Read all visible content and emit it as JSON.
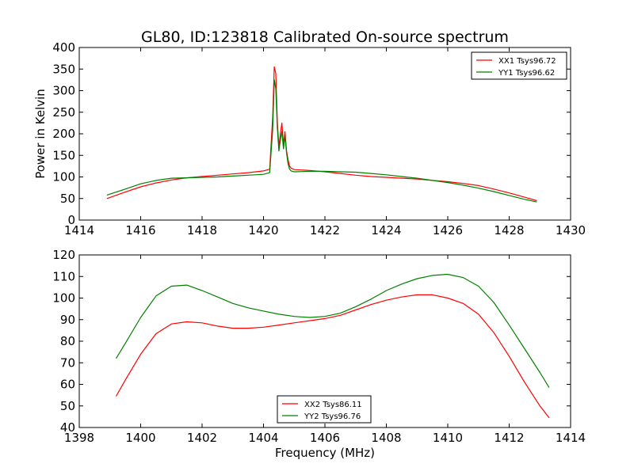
{
  "figure": {
    "title": "GL80, ID:123818 Calibrated On-source spectrum"
  },
  "chart_data": [
    {
      "type": "line",
      "title": "GL80, ID:123818 Calibrated On-source spectrum",
      "xlabel": "",
      "ylabel": "Power in Kelvin",
      "xlim": [
        1414,
        1430
      ],
      "ylim": [
        0,
        400
      ],
      "xticks": [
        1414,
        1416,
        1418,
        1420,
        1422,
        1424,
        1426,
        1428,
        1430
      ],
      "yticks": [
        0,
        50,
        100,
        150,
        200,
        250,
        300,
        350,
        400
      ],
      "grid": false,
      "legend_position": "top-right",
      "series": [
        {
          "name": "XX1 Tsys96.72",
          "color": "#ff0000",
          "x": [
            1414.9,
            1415.5,
            1416.0,
            1416.5,
            1417.0,
            1417.5,
            1418.0,
            1418.5,
            1419.0,
            1419.5,
            1420.0,
            1420.2,
            1420.3,
            1420.35,
            1420.4,
            1420.45,
            1420.5,
            1420.55,
            1420.6,
            1420.65,
            1420.7,
            1420.75,
            1420.8,
            1420.85,
            1420.9,
            1421.0,
            1421.5,
            1422.0,
            1422.5,
            1423.0,
            1423.5,
            1424.0,
            1424.5,
            1425.0,
            1425.5,
            1426.0,
            1426.5,
            1427.0,
            1427.5,
            1428.0,
            1428.5,
            1428.9
          ],
          "y": [
            50,
            65,
            77,
            86,
            93,
            98,
            101,
            104,
            107,
            110,
            114,
            118,
            240,
            355,
            340,
            230,
            170,
            200,
            225,
            175,
            205,
            160,
            140,
            125,
            120,
            117,
            115,
            112,
            108,
            104,
            101,
            99,
            97,
            95,
            92,
            89,
            85,
            80,
            72,
            63,
            53,
            45
          ]
        },
        {
          "name": "YY1 Tsys96.62",
          "color": "#008000",
          "x": [
            1414.9,
            1415.5,
            1416.0,
            1416.5,
            1417.0,
            1417.5,
            1418.0,
            1418.5,
            1419.0,
            1419.5,
            1420.0,
            1420.2,
            1420.3,
            1420.35,
            1420.4,
            1420.45,
            1420.5,
            1420.55,
            1420.6,
            1420.65,
            1420.7,
            1420.75,
            1420.8,
            1420.85,
            1420.9,
            1421.0,
            1421.5,
            1422.0,
            1422.5,
            1423.0,
            1423.5,
            1424.0,
            1424.5,
            1425.0,
            1425.5,
            1426.0,
            1426.5,
            1427.0,
            1427.5,
            1428.0,
            1428.5,
            1428.9
          ],
          "y": [
            58,
            72,
            84,
            92,
            97,
            98,
            99,
            100,
            102,
            104,
            106,
            110,
            210,
            325,
            305,
            215,
            160,
            185,
            205,
            165,
            195,
            155,
            130,
            118,
            114,
            112,
            113,
            113,
            112,
            111,
            108,
            105,
            101,
            97,
            92,
            87,
            81,
            74,
            66,
            57,
            48,
            42
          ]
        }
      ]
    },
    {
      "type": "line",
      "title": "",
      "xlabel": "Frequency (MHz)",
      "ylabel": "",
      "xlim": [
        1398,
        1414
      ],
      "ylim": [
        40,
        120
      ],
      "xticks": [
        1398,
        1400,
        1402,
        1404,
        1406,
        1408,
        1410,
        1412,
        1414
      ],
      "yticks": [
        40,
        50,
        60,
        70,
        80,
        90,
        100,
        110,
        120
      ],
      "grid": false,
      "legend_position": "bottom-center",
      "series": [
        {
          "name": "XX2 Tsys86.11",
          "color": "#ff0000",
          "x": [
            1399.2,
            1399.5,
            1400.0,
            1400.5,
            1401.0,
            1401.5,
            1402.0,
            1402.5,
            1403.0,
            1403.5,
            1404.0,
            1404.5,
            1405.0,
            1405.5,
            1406.0,
            1406.5,
            1407.0,
            1407.5,
            1408.0,
            1408.5,
            1409.0,
            1409.5,
            1410.0,
            1410.5,
            1411.0,
            1411.5,
            1412.0,
            1412.5,
            1413.0,
            1413.3
          ],
          "y": [
            54.5,
            62,
            74,
            83.5,
            88,
            89,
            88.5,
            87,
            86,
            86,
            86.5,
            87.5,
            88.5,
            89.5,
            90.5,
            92,
            94.5,
            97,
            99,
            100.5,
            101.5,
            101.5,
            100,
            97.5,
            92.5,
            84,
            73,
            61,
            50,
            44.5
          ]
        },
        {
          "name": "YY2 Tsys96.76",
          "color": "#008000",
          "x": [
            1399.2,
            1399.5,
            1400.0,
            1400.5,
            1401.0,
            1401.5,
            1402.0,
            1402.5,
            1403.0,
            1403.5,
            1404.0,
            1404.5,
            1405.0,
            1405.5,
            1406.0,
            1406.5,
            1407.0,
            1407.5,
            1408.0,
            1408.5,
            1409.0,
            1409.5,
            1410.0,
            1410.5,
            1411.0,
            1411.5,
            1412.0,
            1412.5,
            1413.0,
            1413.3
          ],
          "y": [
            72,
            79,
            91,
            101,
            105.5,
            106,
            103.5,
            100.5,
            97.5,
            95.5,
            94,
            92.5,
            91.5,
            91,
            91.5,
            93,
            96,
            99.5,
            103.5,
            106.5,
            109,
            110.5,
            111,
            109.5,
            105.5,
            98,
            87.5,
            76.5,
            65.5,
            58.5
          ]
        }
      ]
    }
  ]
}
